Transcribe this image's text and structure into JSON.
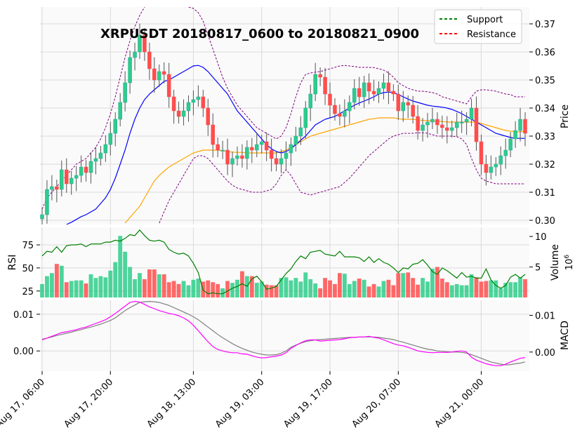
{
  "chart_data": {
    "type": "candlestick",
    "title": "XRPUSDT 20180817_0600 to 20180821_0900",
    "x_tick_labels": [
      "Aug 17, 06:00",
      "Aug 17, 20:00",
      "Aug 18, 13:00",
      "Aug 19, 03:00",
      "Aug 19, 17:00",
      "Aug 20, 07:00",
      "Aug 21, 00:00"
    ],
    "x_tick_index": [
      0,
      14,
      31,
      45,
      59,
      73,
      90
    ],
    "n_bars": 100,
    "legend": {
      "placement": "top-right",
      "items": [
        {
          "label": "Support",
          "color": "#008000",
          "style": "dashed"
        },
        {
          "label": "Resistance",
          "color": "#ff0000",
          "style": "dashed"
        }
      ]
    },
    "colors": {
      "up": "#26a69a",
      "up_fill": "#2ecc8a",
      "down": "#ff4d4d",
      "ma_fast": "#0000ff",
      "ma_slow": "#ffa500",
      "bollinger": "#800080",
      "rsi": "#008000",
      "macd": "#ff00ff",
      "macd_signal": "#808080"
    },
    "price_panel": {
      "ylabel": "Price",
      "y_ticks": [
        "0.30",
        "0.31",
        "0.32",
        "0.33",
        "0.34",
        "0.35",
        "0.36",
        "0.37"
      ],
      "ylim": [
        0.2985,
        0.376
      ],
      "close": [
        0.302,
        0.311,
        0.312,
        0.311,
        0.318,
        0.313,
        0.315,
        0.316,
        0.319,
        0.317,
        0.321,
        0.322,
        0.324,
        0.327,
        0.331,
        0.336,
        0.342,
        0.349,
        0.358,
        0.36,
        0.366,
        0.36,
        0.354,
        0.35,
        0.353,
        0.352,
        0.344,
        0.339,
        0.337,
        0.339,
        0.342,
        0.343,
        0.344,
        0.34,
        0.334,
        0.327,
        0.325,
        0.325,
        0.32,
        0.322,
        0.323,
        0.322,
        0.326,
        0.325,
        0.327,
        0.328,
        0.325,
        0.322,
        0.32,
        0.322,
        0.324,
        0.327,
        0.33,
        0.333,
        0.34,
        0.345,
        0.352,
        0.351,
        0.345,
        0.341,
        0.338,
        0.337,
        0.339,
        0.342,
        0.347,
        0.344,
        0.349,
        0.346,
        0.345,
        0.347,
        0.349,
        0.346,
        0.345,
        0.339,
        0.342,
        0.341,
        0.337,
        0.332,
        0.334,
        0.335,
        0.336,
        0.334,
        0.333,
        0.332,
        0.333,
        0.335,
        0.335,
        0.336,
        0.34,
        0.328,
        0.32,
        0.317,
        0.319,
        0.32,
        0.323,
        0.325,
        0.329,
        0.332,
        0.336,
        0.331
      ],
      "ma_fast": [
        null,
        null,
        null,
        null,
        null,
        0.2985,
        0.2993,
        0.3003,
        0.3013,
        0.302,
        0.303,
        0.304,
        0.306,
        0.308,
        0.311,
        0.315,
        0.32,
        0.325,
        0.331,
        0.336,
        0.34,
        0.343,
        0.345,
        0.3465,
        0.348,
        0.3495,
        0.35,
        0.351,
        0.352,
        0.353,
        0.354,
        0.355,
        0.3552,
        0.3545,
        0.353,
        0.351,
        0.349,
        0.347,
        0.345,
        0.342,
        0.339,
        0.337,
        0.335,
        0.333,
        0.331,
        0.329,
        0.327,
        0.3255,
        0.3245,
        0.324,
        0.3245,
        0.3255,
        0.327,
        0.3285,
        0.33,
        0.332,
        0.334,
        0.335,
        0.336,
        0.3365,
        0.337,
        0.338,
        0.339,
        0.34,
        0.341,
        0.3418,
        0.3425,
        0.3432,
        0.344,
        0.345,
        0.3455,
        0.3457,
        0.3455,
        0.3448,
        0.344,
        0.3432,
        0.3425,
        0.342,
        0.3415,
        0.341,
        0.3407,
        0.3405,
        0.3403,
        0.34,
        0.3395,
        0.3388,
        0.338,
        0.337,
        0.336,
        0.335,
        0.334,
        0.333,
        0.332,
        0.331,
        0.3305,
        0.33,
        0.3295,
        0.3292,
        0.3292,
        0.3292
      ],
      "ma_slow": [
        null,
        null,
        null,
        null,
        null,
        null,
        null,
        null,
        null,
        null,
        null,
        null,
        null,
        null,
        null,
        null,
        null,
        0.299,
        0.301,
        0.303,
        0.305,
        0.308,
        0.311,
        0.314,
        0.316,
        0.3175,
        0.319,
        0.32,
        0.321,
        0.322,
        0.323,
        0.324,
        0.3245,
        0.325,
        0.325,
        0.325,
        0.325,
        0.3248,
        0.3245,
        0.3243,
        0.3242,
        0.3242,
        0.324,
        0.324,
        0.324,
        0.324,
        0.324,
        0.324,
        0.324,
        0.3245,
        0.325,
        0.326,
        0.327,
        0.328,
        0.329,
        0.33,
        0.3305,
        0.331,
        0.3315,
        0.332,
        0.3325,
        0.333,
        0.3335,
        0.334,
        0.3345,
        0.335,
        0.3355,
        0.336,
        0.3362,
        0.3365,
        0.3365,
        0.3365,
        0.3365,
        0.3362,
        0.336,
        0.336,
        0.336,
        0.3358,
        0.3356,
        0.3355,
        0.3354,
        0.3353,
        0.3352,
        0.335,
        0.335,
        0.335,
        0.335,
        0.335,
        0.335,
        0.335,
        0.3345,
        0.334,
        0.3335,
        0.333,
        0.3325,
        0.332,
        0.3318,
        0.3315,
        0.3315,
        0.3318
      ],
      "bb_upper": [
        0.304,
        0.308,
        0.31,
        0.312,
        0.314,
        0.316,
        0.318,
        0.32,
        0.321,
        0.322,
        0.324,
        0.326,
        0.329,
        0.333,
        0.338,
        0.344,
        0.351,
        0.358,
        0.364,
        0.369,
        0.373,
        0.376,
        0.378,
        0.379,
        0.379,
        0.3785,
        0.378,
        0.3775,
        0.377,
        0.3765,
        0.376,
        0.3755,
        0.374,
        0.371,
        0.366,
        0.361,
        0.356,
        0.351,
        0.347,
        0.344,
        0.341,
        0.339,
        0.337,
        0.335,
        0.333,
        0.332,
        0.331,
        0.33,
        0.329,
        0.33,
        0.333,
        0.338,
        0.344,
        0.349,
        0.352,
        0.3525,
        0.3528,
        0.353,
        0.3535,
        0.354,
        0.3545,
        0.355,
        0.3552,
        0.355,
        0.3548,
        0.3545,
        0.3545,
        0.3545,
        0.3544,
        0.354,
        0.3535,
        0.3525,
        0.351,
        0.349,
        0.348,
        0.347,
        0.3465,
        0.346,
        0.346,
        0.3458,
        0.3455,
        0.345,
        0.344,
        0.3435,
        0.343,
        0.3425,
        0.342,
        0.3415,
        0.344,
        0.346,
        0.3465,
        0.3465,
        0.3463,
        0.346,
        0.3455,
        0.345,
        0.3448,
        0.344,
        0.344,
        0.344
      ],
      "bb_lower": [
        null,
        null,
        null,
        null,
        null,
        null,
        null,
        null,
        null,
        null,
        null,
        null,
        null,
        null,
        null,
        null,
        null,
        null,
        null,
        null,
        null,
        null,
        null,
        null,
        0.299,
        0.303,
        0.307,
        0.31,
        0.313,
        0.316,
        0.319,
        0.322,
        0.323,
        0.323,
        0.322,
        0.32,
        0.318,
        0.316,
        0.314,
        0.3125,
        0.3115,
        0.311,
        0.3105,
        0.31,
        0.31,
        0.31,
        0.3105,
        0.311,
        0.313,
        0.316,
        0.318,
        0.316,
        0.313,
        0.31,
        0.3095,
        0.309,
        0.3095,
        0.31,
        0.3105,
        0.311,
        0.3115,
        0.312,
        0.3135,
        0.315,
        0.317,
        0.319,
        0.321,
        0.323,
        0.3245,
        0.326,
        0.3275,
        0.329,
        0.33,
        0.3305,
        0.331,
        0.331,
        0.331,
        0.3312,
        0.3312,
        0.331,
        0.3305,
        0.33,
        0.33,
        0.33,
        0.33,
        0.3298,
        0.329,
        0.327,
        0.322,
        0.318,
        0.315,
        0.314,
        0.3135,
        0.313,
        0.313,
        0.313,
        0.313,
        0.313,
        0.313,
        0.313
      ]
    },
    "rsi_panel": {
      "ylabel": "RSI",
      "y_ticks": [
        "25",
        "50",
        "75"
      ],
      "ylim": [
        18,
        94
      ],
      "values": [
        63,
        68,
        67,
        73,
        67,
        74,
        75,
        75,
        76,
        73,
        76,
        76,
        76,
        78,
        78,
        80,
        79,
        82,
        86,
        85,
        91,
        85,
        80,
        79,
        80,
        78,
        70,
        67,
        65,
        66,
        63,
        55,
        45,
        26,
        22,
        23,
        22,
        22,
        25,
        28,
        30,
        33,
        30,
        38,
        41,
        35,
        27,
        28,
        30,
        37,
        44,
        49,
        57,
        63,
        60,
        67,
        68,
        69,
        65,
        64,
        63,
        68,
        62,
        62,
        62,
        61,
        57,
        62,
        56,
        60,
        56,
        54,
        50,
        45,
        50,
        49,
        54,
        55,
        59,
        53,
        46,
        43,
        50,
        47,
        43,
        39,
        45,
        40,
        41,
        39,
        39,
        49,
        37,
        31,
        28,
        31,
        40,
        43,
        39,
        43
      ]
    },
    "volume_panel": {
      "ylabel": "Volume",
      "exponent": "10^6",
      "y_ticks": [
        "5",
        "10"
      ],
      "ylim": [
        0,
        11.5
      ],
      "values": [
        2.2,
        3.5,
        4.0,
        5.5,
        5.2,
        2.5,
        2.7,
        2.8,
        2.8,
        2.3,
        3.8,
        3.2,
        3.5,
        3.3,
        4.4,
        5.8,
        10.1,
        7.5,
        5.0,
        3.0,
        4.0,
        3.0,
        4.6,
        4.6,
        3.8,
        3.8,
        2.5,
        2.7,
        2.2,
        2.7,
        2.0,
        2.9,
        3.1,
        2.6,
        2.8,
        2.5,
        2.2,
        1.5,
        2.7,
        2.4,
        2.9,
        4.3,
        3.5,
        3.5,
        2.4,
        2.6,
        2.1,
        2.0,
        2.0,
        3.2,
        3.3,
        2.8,
        3.2,
        2.6,
        4.1,
        3.0,
        2.3,
        1.5,
        3.2,
        2.8,
        2.2,
        4.0,
        3.9,
        2.2,
        2.7,
        3.1,
        2.9,
        1.8,
        2.2,
        1.8,
        2.7,
        2.9,
        2.0,
        4.0,
        4.0,
        4.1,
        3.2,
        2.1,
        3.2,
        2.6,
        4.7,
        5.0,
        3.1,
        2.5,
        2.0,
        2.2,
        2.0,
        2.0,
        3.8,
        3.3,
        2.6,
        2.7,
        2.8,
        2.8,
        1.5,
        2.4,
        2.5,
        2.5,
        3.3,
        3.0
      ]
    },
    "macd_panel": {
      "ylabel": "MACD",
      "y_ticks": [
        "0.00",
        "0.01"
      ],
      "ylim": [
        -0.0055,
        0.0138
      ],
      "macd": [
        0.003,
        0.0035,
        0.004,
        0.0045,
        0.005,
        0.0052,
        0.0055,
        0.0058,
        0.0062,
        0.0065,
        0.007,
        0.0075,
        0.008,
        0.0085,
        0.0093,
        0.0102,
        0.0112,
        0.0122,
        0.0132,
        0.0135,
        0.0133,
        0.0127,
        0.012,
        0.0115,
        0.011,
        0.0106,
        0.0102,
        0.01,
        0.0096,
        0.009,
        0.0082,
        0.007,
        0.0055,
        0.004,
        0.0025,
        0.0012,
        0.0004,
        0.0,
        -0.0003,
        -0.0005,
        -0.0005,
        -0.0008,
        -0.0009,
        -0.0013,
        -0.0017,
        -0.0019,
        -0.0018,
        -0.0016,
        -0.0014,
        -0.0011,
        -0.0005,
        0.0007,
        0.0015,
        0.0022,
        0.0028,
        0.003,
        0.003,
        0.0027,
        0.0028,
        0.0029,
        0.003,
        0.0031,
        0.0033,
        0.0036,
        0.0037,
        0.0038,
        0.0038,
        0.004,
        0.0037,
        0.0035,
        0.003,
        0.0025,
        0.002,
        0.0016,
        0.0014,
        0.001,
        0.0005,
        0.0,
        -0.0002,
        -0.0004,
        -0.0005,
        -0.0004,
        -0.0004,
        -0.0004,
        -0.0003,
        -0.0001,
        0.0,
        -0.0003,
        -0.0017,
        -0.0025,
        -0.003,
        -0.0035,
        -0.0038,
        -0.004,
        -0.004,
        -0.0036,
        -0.003,
        -0.0025,
        -0.002,
        -0.0018
      ],
      "signal": [
        0.0032,
        0.0035,
        0.0038,
        0.0042,
        0.0045,
        0.0048,
        0.0051,
        0.0055,
        0.0058,
        0.0062,
        0.0065,
        0.0069,
        0.0073,
        0.0078,
        0.0083,
        0.009,
        0.01,
        0.011,
        0.0118,
        0.0125,
        0.0132,
        0.0134,
        0.0135,
        0.0134,
        0.0132,
        0.0128,
        0.0124,
        0.0118,
        0.0112,
        0.0106,
        0.01,
        0.0093,
        0.0085,
        0.0075,
        0.0065,
        0.0055,
        0.0045,
        0.0036,
        0.0028,
        0.002,
        0.0013,
        0.0007,
        0.0002,
        -0.0003,
        -0.0006,
        -0.0009,
        -0.0011,
        -0.0011,
        -0.001,
        -0.0006,
        0.0,
        0.001,
        0.0016,
        0.0021,
        0.0025,
        0.0028,
        0.003,
        0.0031,
        0.0032,
        0.0033,
        0.0034,
        0.0035,
        0.0036,
        0.0037,
        0.0037,
        0.0038,
        0.0038,
        0.0038,
        0.0038,
        0.0037,
        0.0035,
        0.0033,
        0.0031,
        0.0027,
        0.0024,
        0.002,
        0.0016,
        0.0012,
        0.0008,
        0.0005,
        0.0003,
        0.0,
        -0.0001,
        -0.0002,
        -0.0003,
        -0.0003,
        -0.0004,
        -0.0006,
        -0.001,
        -0.0015,
        -0.002,
        -0.0025,
        -0.003,
        -0.0033,
        -0.0036,
        -0.0038,
        -0.0037,
        -0.0035,
        -0.0033,
        -0.003
      ]
    }
  }
}
